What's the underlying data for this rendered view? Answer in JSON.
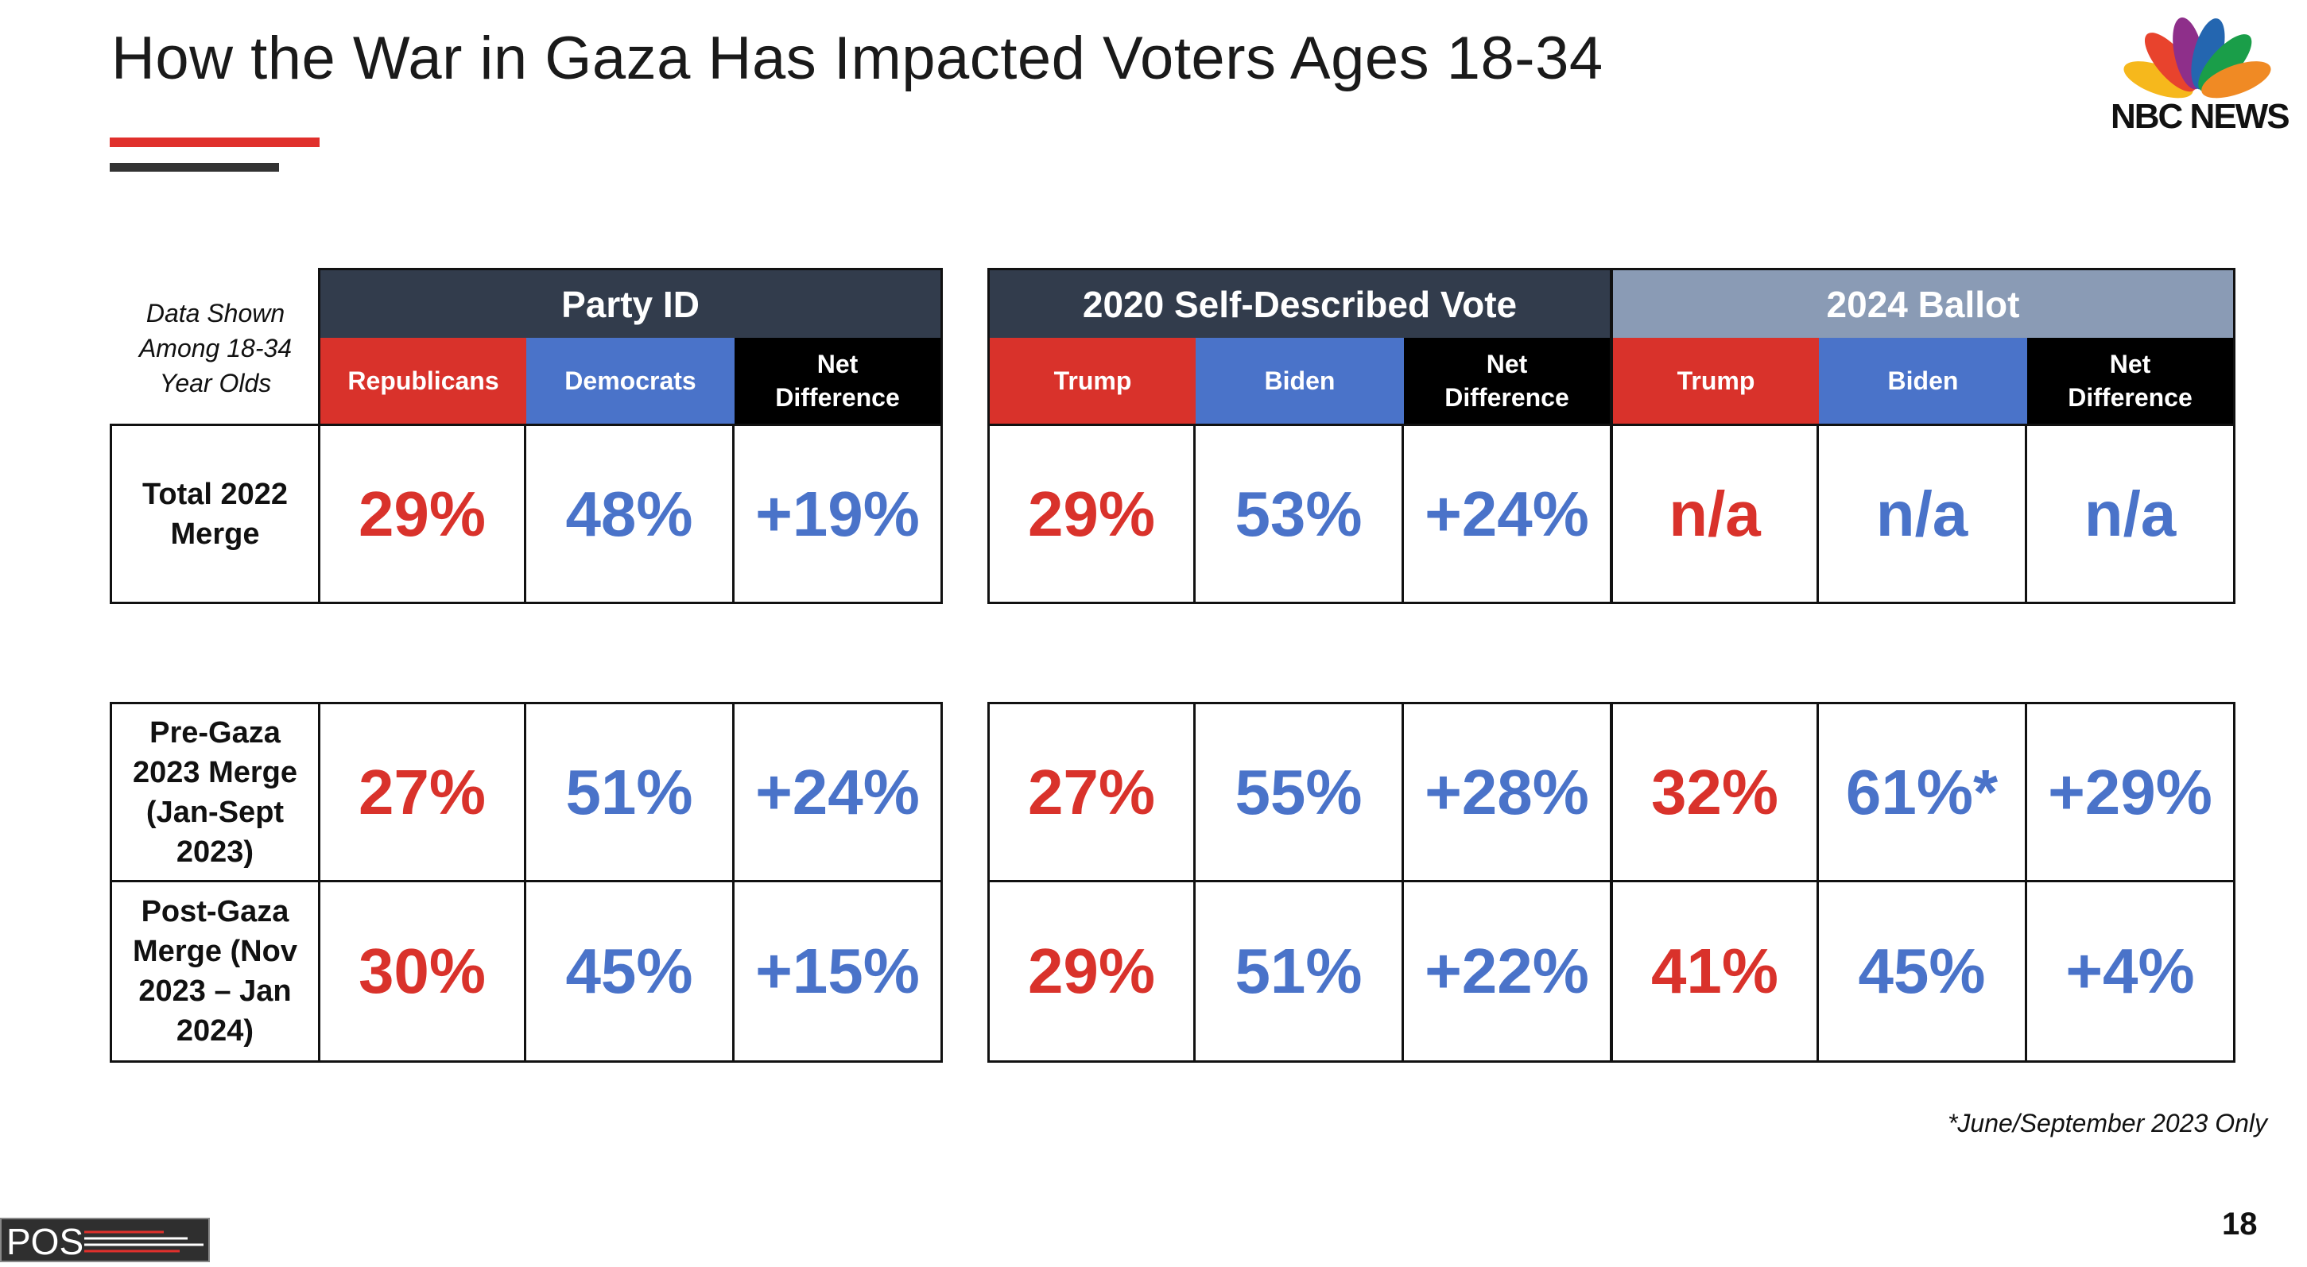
{
  "title": "How the War in Gaza Has Impacted Voters Ages 18-34",
  "logo": {
    "text": "NBC NEWS"
  },
  "note": "Data Shown Among 18-34 Year Olds",
  "colors": {
    "red": "#d9322b",
    "blue": "#4a73c9",
    "dark_header": "#323c4c",
    "light_header": "#8a9bb5",
    "black": "#000000"
  },
  "groups": [
    {
      "label": "Party ID",
      "cols": [
        "Republicans",
        "Democrats",
        "Net Difference"
      ]
    },
    {
      "label": "2020 Self-Described Vote",
      "cols": [
        "Trump",
        "Biden",
        "Net Difference"
      ]
    },
    {
      "label": "2024 Ballot",
      "cols": [
        "Trump",
        "Biden",
        "Net Difference"
      ]
    }
  ],
  "rows": [
    {
      "label": "Total 2022 Merge",
      "values": [
        [
          "29%",
          "48%",
          "+19%"
        ],
        [
          "29%",
          "53%",
          "+24%"
        ],
        [
          "n/a",
          "n/a",
          "n/a"
        ]
      ]
    },
    {
      "label": "Pre-Gaza 2023 Merge (Jan-Sept 2023)",
      "values": [
        [
          "27%",
          "51%",
          "+24%"
        ],
        [
          "27%",
          "55%",
          "+28%"
        ],
        [
          "32%",
          "61%*",
          "+29%"
        ]
      ]
    },
    {
      "label": "Post-Gaza Merge (Nov 2023 – Jan 2024)",
      "values": [
        [
          "30%",
          "45%",
          "+15%"
        ],
        [
          "29%",
          "51%",
          "+22%"
        ],
        [
          "41%",
          "45%",
          "+4%"
        ]
      ]
    }
  ],
  "footnote": "*June/September 2023 Only",
  "page_number": "18",
  "pos_logo": "POS"
}
